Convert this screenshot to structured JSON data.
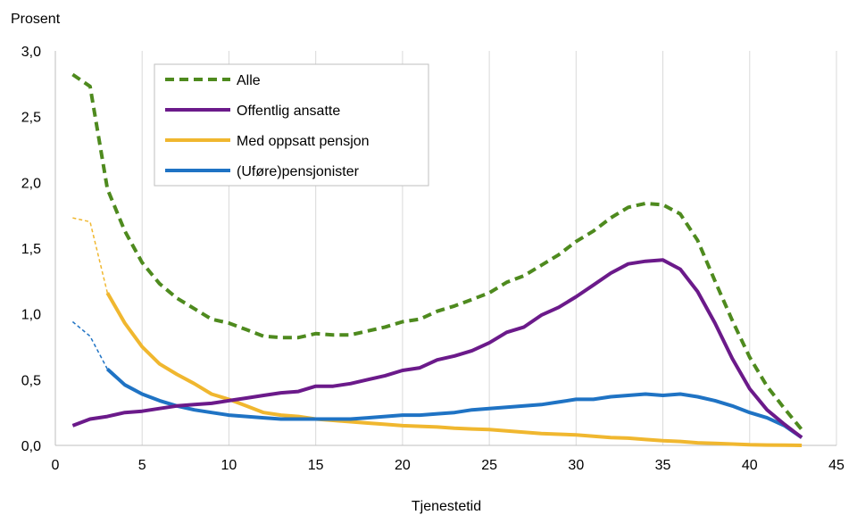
{
  "chart_data": {
    "type": "line",
    "xlabel": "Tjenestetid",
    "ylabel": "Prosent",
    "xlim": [
      0,
      45
    ],
    "ylim": [
      0,
      3.0
    ],
    "x_ticks": [
      "0",
      "5",
      "10",
      "15",
      "20",
      "25",
      "30",
      "35",
      "40",
      "45"
    ],
    "y_ticks": [
      "0,0",
      "0,5",
      "1,0",
      "1,5",
      "2,0",
      "2,5",
      "3,0"
    ],
    "grid": "vertical",
    "legend_position": "top-left",
    "x": [
      1,
      2,
      3,
      4,
      5,
      6,
      7,
      8,
      9,
      10,
      11,
      12,
      13,
      14,
      15,
      16,
      17,
      18,
      19,
      20,
      21,
      22,
      23,
      24,
      25,
      26,
      27,
      28,
      29,
      30,
      31,
      32,
      33,
      34,
      35,
      36,
      37,
      38,
      39,
      40,
      41,
      42,
      43
    ],
    "series": [
      {
        "name": "Alle",
        "color": "#4e8a1e",
        "style": "dashed",
        "values": [
          2.82,
          2.73,
          1.95,
          1.63,
          1.39,
          1.23,
          1.12,
          1.04,
          0.96,
          0.93,
          0.88,
          0.83,
          0.82,
          0.82,
          0.85,
          0.84,
          0.84,
          0.87,
          0.9,
          0.94,
          0.96,
          1.02,
          1.06,
          1.11,
          1.16,
          1.24,
          1.29,
          1.37,
          1.45,
          1.55,
          1.63,
          1.73,
          1.81,
          1.84,
          1.83,
          1.76,
          1.56,
          1.25,
          0.95,
          0.67,
          0.45,
          0.28,
          0.12
        ]
      },
      {
        "name": "Offentlig ansatte",
        "color": "#6b1a8a",
        "style": "solid",
        "values": [
          0.15,
          0.2,
          0.22,
          0.25,
          0.26,
          0.28,
          0.3,
          0.31,
          0.32,
          0.34,
          0.36,
          0.38,
          0.4,
          0.41,
          0.45,
          0.45,
          0.47,
          0.5,
          0.53,
          0.57,
          0.59,
          0.65,
          0.68,
          0.72,
          0.78,
          0.86,
          0.9,
          0.99,
          1.05,
          1.13,
          1.22,
          1.31,
          1.38,
          1.4,
          1.41,
          1.34,
          1.17,
          0.93,
          0.66,
          0.43,
          0.27,
          0.16,
          0.06
        ]
      },
      {
        "name": "Med oppsatt pensjon",
        "color": "#f0b72f",
        "style": "solid",
        "values": [
          null,
          null,
          1.16,
          0.93,
          0.75,
          0.62,
          0.54,
          0.47,
          0.39,
          0.35,
          0.3,
          0.25,
          0.23,
          0.22,
          0.2,
          0.19,
          0.18,
          0.17,
          0.16,
          0.15,
          0.145,
          0.14,
          0.13,
          0.125,
          0.12,
          0.11,
          0.1,
          0.09,
          0.085,
          0.08,
          0.07,
          0.06,
          0.055,
          0.045,
          0.035,
          0.03,
          0.02,
          0.015,
          0.01,
          0.005,
          0.003,
          0.002,
          0.0
        ]
      },
      {
        "name": "(Uføre)pensjonister",
        "color": "#1f73c4",
        "style": "solid",
        "values": [
          null,
          null,
          0.58,
          0.46,
          0.39,
          0.34,
          0.3,
          0.27,
          0.25,
          0.23,
          0.22,
          0.21,
          0.2,
          0.2,
          0.2,
          0.2,
          0.2,
          0.21,
          0.22,
          0.23,
          0.23,
          0.24,
          0.25,
          0.27,
          0.28,
          0.29,
          0.3,
          0.31,
          0.33,
          0.35,
          0.35,
          0.37,
          0.38,
          0.39,
          0.38,
          0.39,
          0.37,
          0.34,
          0.3,
          0.25,
          0.21,
          0.15,
          0.06
        ]
      },
      {
        "name": "",
        "color": "#f0b72f",
        "style": "thin-dashed",
        "values": [
          1.73,
          1.7,
          1.16,
          null,
          null,
          null,
          null,
          null,
          null,
          null,
          null,
          null,
          null,
          null,
          null,
          null,
          null,
          null,
          null,
          null,
          null,
          null,
          null,
          null,
          null,
          null,
          null,
          null,
          null,
          null,
          null,
          null,
          null,
          null,
          null,
          null,
          null,
          null,
          null,
          null,
          null,
          null,
          null
        ]
      },
      {
        "name": "",
        "color": "#1f73c4",
        "style": "thin-dashed",
        "values": [
          0.94,
          0.83,
          0.58,
          null,
          null,
          null,
          null,
          null,
          null,
          null,
          null,
          null,
          null,
          null,
          null,
          null,
          null,
          null,
          null,
          null,
          null,
          null,
          null,
          null,
          null,
          null,
          null,
          null,
          null,
          null,
          null,
          null,
          null,
          null,
          null,
          null,
          null,
          null,
          null,
          null,
          null,
          null,
          null
        ]
      }
    ],
    "legend": [
      {
        "label": "Alle",
        "color": "#4e8a1e",
        "style": "dashed"
      },
      {
        "label": "Offentlig ansatte",
        "color": "#6b1a8a",
        "style": "solid"
      },
      {
        "label": "Med oppsatt pensjon",
        "color": "#f0b72f",
        "style": "solid"
      },
      {
        "label": "(Uføre)pensjonister",
        "color": "#1f73c4",
        "style": "solid"
      }
    ]
  }
}
